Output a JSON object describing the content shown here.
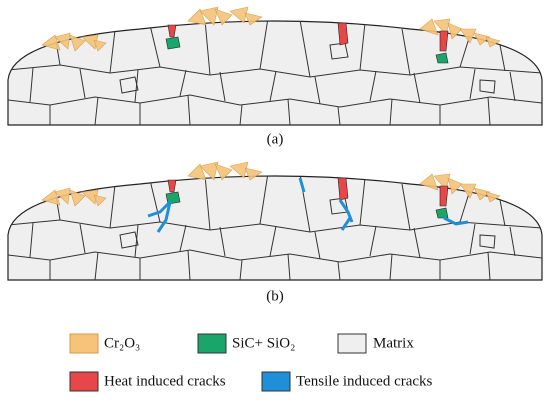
{
  "panels": [
    {
      "label": "(a)"
    },
    {
      "label": "(b)"
    }
  ],
  "legend": [
    {
      "label": "Cr₂O₃"
    },
    {
      "label": "SiC+ SiO₂"
    },
    {
      "label": "Matrix"
    },
    {
      "label": "Heat induced cracks"
    },
    {
      "label": "Tensile induced cracks"
    }
  ]
}
